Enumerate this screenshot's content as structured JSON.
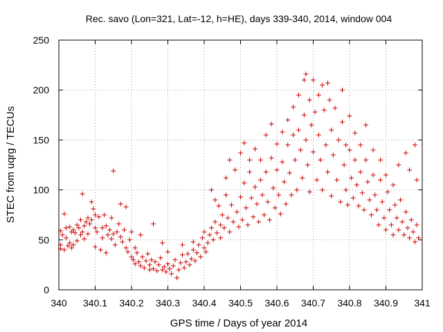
{
  "chart_data": {
    "type": "scatter",
    "title": "Rec. savo (Lon=321, Lat=-12, h=HE), days 339-340, 2014, window 004",
    "xlabel": "GPS time / Days of year 2014",
    "ylabel": "STEC from uqrg / TECUs",
    "xlim": [
      340,
      341
    ],
    "ylim": [
      0,
      250
    ],
    "xticks": [
      340,
      340.1,
      340.2,
      340.3,
      340.4,
      340.5,
      340.6,
      340.7,
      340.8,
      340.9,
      341
    ],
    "xtick_labels": [
      "340",
      "340.1",
      "340.2",
      "340.3",
      "340.4",
      "340.5",
      "340.6",
      "340.7",
      "340.8",
      "340.9",
      "341"
    ],
    "yticks": [
      0,
      50,
      100,
      150,
      200,
      250
    ],
    "ytick_labels": [
      "0",
      "50",
      "100",
      "150",
      "200",
      "250"
    ],
    "grid": true,
    "marker": "+",
    "color": "#cc0000",
    "series": [
      {
        "name": "STEC",
        "points": [
          [
            340.005,
            59
          ],
          [
            340.005,
            45
          ],
          [
            340.005,
            41
          ],
          [
            340.01,
            55
          ],
          [
            340.015,
            76
          ],
          [
            340.015,
            40
          ],
          [
            340.02,
            62
          ],
          [
            340.02,
            52
          ],
          [
            340.025,
            44
          ],
          [
            340.03,
            63
          ],
          [
            340.03,
            47
          ],
          [
            340.035,
            58
          ],
          [
            340.035,
            42
          ],
          [
            340.04,
            60
          ],
          [
            340.04,
            45
          ],
          [
            340.045,
            57
          ],
          [
            340.05,
            65
          ],
          [
            340.05,
            49
          ],
          [
            340.055,
            62
          ],
          [
            340.06,
            70
          ],
          [
            340.06,
            55
          ],
          [
            340.065,
            96
          ],
          [
            340.065,
            58
          ],
          [
            340.07,
            64
          ],
          [
            340.07,
            51
          ],
          [
            340.075,
            68
          ],
          [
            340.08,
            72
          ],
          [
            340.08,
            56
          ],
          [
            340.085,
            66
          ],
          [
            340.09,
            70
          ],
          [
            340.09,
            88
          ],
          [
            340.095,
            81
          ],
          [
            340.1,
            62
          ],
          [
            340.1,
            75
          ],
          [
            340.1,
            43
          ],
          [
            340.105,
            58
          ],
          [
            340.11,
            73
          ],
          [
            340.115,
            40
          ],
          [
            340.12,
            52
          ],
          [
            340.12,
            62
          ],
          [
            340.125,
            75
          ],
          [
            340.13,
            64
          ],
          [
            340.13,
            37
          ],
          [
            340.135,
            55
          ],
          [
            340.14,
            60
          ],
          [
            340.145,
            51
          ],
          [
            340.145,
            72
          ],
          [
            340.15,
            119
          ],
          [
            340.15,
            56
          ],
          [
            340.155,
            45
          ],
          [
            340.16,
            58
          ],
          [
            340.165,
            66
          ],
          [
            340.17,
            86
          ],
          [
            340.17,
            53
          ],
          [
            340.175,
            48
          ],
          [
            340.18,
            60
          ],
          [
            340.185,
            83
          ],
          [
            340.185,
            42
          ],
          [
            340.19,
            38
          ],
          [
            340.195,
            50
          ],
          [
            340.2,
            58
          ],
          [
            340.2,
            33
          ],
          [
            340.205,
            30
          ],
          [
            340.21,
            42
          ],
          [
            340.21,
            26
          ],
          [
            340.215,
            37
          ],
          [
            340.22,
            28
          ],
          [
            340.225,
            55
          ],
          [
            340.225,
            24
          ],
          [
            340.23,
            33
          ],
          [
            340.235,
            22
          ],
          [
            340.24,
            29
          ],
          [
            340.245,
            36
          ],
          [
            340.25,
            25
          ],
          [
            340.25,
            20
          ],
          [
            340.255,
            30
          ],
          [
            340.26,
            66
          ],
          [
            340.26,
            21
          ],
          [
            340.265,
            28
          ],
          [
            340.27,
            19
          ],
          [
            340.275,
            25
          ],
          [
            340.28,
            32
          ],
          [
            340.285,
            20
          ],
          [
            340.285,
            47
          ],
          [
            340.29,
            23
          ],
          [
            340.295,
            18
          ],
          [
            340.3,
            26
          ],
          [
            340.3,
            38
          ],
          [
            340.305,
            21
          ],
          [
            340.31,
            16
          ],
          [
            340.315,
            24
          ],
          [
            340.32,
            30
          ],
          [
            340.325,
            12
          ],
          [
            340.33,
            20
          ],
          [
            340.335,
            27
          ],
          [
            340.34,
            35
          ],
          [
            340.34,
            45
          ],
          [
            340.345,
            22
          ],
          [
            340.35,
            28
          ],
          [
            340.355,
            36
          ],
          [
            340.36,
            25
          ],
          [
            340.365,
            31
          ],
          [
            340.37,
            40
          ],
          [
            340.37,
            48
          ],
          [
            340.375,
            29
          ],
          [
            340.38,
            37
          ],
          [
            340.385,
            45
          ],
          [
            340.39,
            33
          ],
          [
            340.395,
            52
          ],
          [
            340.4,
            42
          ],
          [
            340.4,
            58
          ],
          [
            340.405,
            38
          ],
          [
            340.41,
            47
          ],
          [
            340.415,
            55
          ],
          [
            340.42,
            62
          ],
          [
            340.42,
            100
          ],
          [
            340.425,
            50
          ],
          [
            340.43,
            68
          ],
          [
            340.43,
            90
          ],
          [
            340.435,
            57
          ],
          [
            340.44,
            84
          ],
          [
            340.445,
            65
          ],
          [
            340.445,
            52
          ],
          [
            340.45,
            75
          ],
          [
            340.455,
            62
          ],
          [
            340.46,
            112
          ],
          [
            340.46,
            95
          ],
          [
            340.465,
            72
          ],
          [
            340.47,
            130
          ],
          [
            340.47,
            58
          ],
          [
            340.475,
            85
          ],
          [
            340.48,
            68
          ],
          [
            340.485,
            120
          ],
          [
            340.49,
            78
          ],
          [
            340.495,
            63
          ],
          [
            340.5,
            137
          ],
          [
            340.5,
            93
          ],
          [
            340.505,
            70
          ],
          [
            340.51,
            147
          ],
          [
            340.51,
            107
          ],
          [
            340.515,
            82
          ],
          [
            340.52,
            65
          ],
          [
            340.525,
            130
          ],
          [
            340.525,
            118
          ],
          [
            340.53,
            92
          ],
          [
            340.535,
            73
          ],
          [
            340.54,
            141
          ],
          [
            340.54,
            103
          ],
          [
            340.545,
            86
          ],
          [
            340.55,
            68
          ],
          [
            340.555,
            130
          ],
          [
            340.555,
            110
          ],
          [
            340.56,
            95
          ],
          [
            340.565,
            75
          ],
          [
            340.57,
            155
          ],
          [
            340.57,
            118
          ],
          [
            340.575,
            88
          ],
          [
            340.58,
            70
          ],
          [
            340.585,
            166
          ],
          [
            340.585,
            132
          ],
          [
            340.59,
            102
          ],
          [
            340.595,
            82
          ],
          [
            340.6,
            146
          ],
          [
            340.6,
            120
          ],
          [
            340.605,
            95
          ],
          [
            340.61,
            76
          ],
          [
            340.615,
            158
          ],
          [
            340.615,
            128
          ],
          [
            340.62,
            108
          ],
          [
            340.625,
            86
          ],
          [
            340.63,
            170
          ],
          [
            340.63,
            145
          ],
          [
            340.635,
            117
          ],
          [
            340.64,
            95
          ],
          [
            340.645,
            183
          ],
          [
            340.645,
            155
          ],
          [
            340.65,
            130
          ],
          [
            340.655,
            100
          ],
          [
            340.66,
            195
          ],
          [
            340.66,
            160
          ],
          [
            340.665,
            140
          ],
          [
            340.67,
            112
          ],
          [
            340.675,
            210
          ],
          [
            340.675,
            175
          ],
          [
            340.68,
            150
          ],
          [
            340.68,
            216
          ],
          [
            340.685,
            125
          ],
          [
            340.69,
            190
          ],
          [
            340.69,
            98
          ],
          [
            340.695,
            165
          ],
          [
            340.7,
            210
          ],
          [
            340.7,
            138
          ],
          [
            340.705,
            178
          ],
          [
            340.71,
            110
          ],
          [
            340.715,
            195
          ],
          [
            340.715,
            155
          ],
          [
            340.72,
            130
          ],
          [
            340.725,
            205
          ],
          [
            340.725,
            100
          ],
          [
            340.73,
            180
          ],
          [
            340.735,
            145
          ],
          [
            340.74,
            207
          ],
          [
            340.74,
            118
          ],
          [
            340.745,
            190
          ],
          [
            340.75,
            160
          ],
          [
            340.75,
            94
          ],
          [
            340.755,
            135
          ],
          [
            340.76,
            182
          ],
          [
            340.765,
            110
          ],
          [
            340.77,
            150
          ],
          [
            340.775,
            88
          ],
          [
            340.78,
            200
          ],
          [
            340.78,
            168
          ],
          [
            340.785,
            125
          ],
          [
            340.79,
            145
          ],
          [
            340.79,
            100
          ],
          [
            340.795,
            85
          ],
          [
            340.8,
            174
          ],
          [
            340.8,
            140
          ],
          [
            340.805,
            112
          ],
          [
            340.81,
            92
          ],
          [
            340.815,
            157
          ],
          [
            340.815,
            130
          ],
          [
            340.82,
            105
          ],
          [
            340.825,
            84
          ],
          [
            340.83,
            145
          ],
          [
            340.83,
            118
          ],
          [
            340.835,
            97
          ],
          [
            340.84,
            80
          ],
          [
            340.845,
            165
          ],
          [
            340.845,
            130
          ],
          [
            340.85,
            108
          ],
          [
            340.855,
            90
          ],
          [
            340.86,
            75
          ],
          [
            340.865,
            140
          ],
          [
            340.865,
            115
          ],
          [
            340.87,
            95
          ],
          [
            340.875,
            80
          ],
          [
            340.88,
            65
          ],
          [
            340.885,
            130
          ],
          [
            340.885,
            110
          ],
          [
            340.89,
            88
          ],
          [
            340.895,
            72
          ],
          [
            340.9,
            115
          ],
          [
            340.9,
            60
          ],
          [
            340.905,
            98
          ],
          [
            340.91,
            80
          ],
          [
            340.915,
            65
          ],
          [
            340.92,
            105
          ],
          [
            340.92,
            55
          ],
          [
            340.925,
            85
          ],
          [
            340.93,
            72
          ],
          [
            340.935,
            125
          ],
          [
            340.935,
            60
          ],
          [
            340.94,
            90
          ],
          [
            340.945,
            68
          ],
          [
            340.95,
            55
          ],
          [
            340.955,
            137
          ],
          [
            340.955,
            78
          ],
          [
            340.96,
            62
          ],
          [
            340.965,
            120
          ],
          [
            340.965,
            52
          ],
          [
            340.97,
            70
          ],
          [
            340.975,
            58
          ],
          [
            340.98,
            145
          ],
          [
            340.98,
            48
          ],
          [
            340.985,
            110
          ],
          [
            340.985,
            65
          ],
          [
            340.99,
            52
          ]
        ]
      }
    ]
  }
}
